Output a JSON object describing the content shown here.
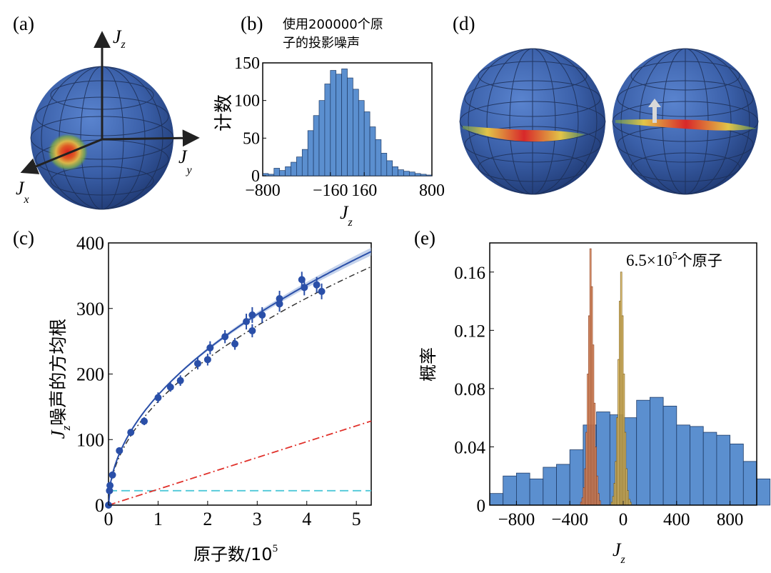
{
  "panels": {
    "a": {
      "label": "(a)",
      "axes": {
        "z": "J",
        "z_sub": "z",
        "y": "J",
        "y_sub": "y",
        "x": "J",
        "x_sub": "x"
      }
    },
    "b": {
      "label": "(b)",
      "note_line1": "使用200000个原",
      "note_line2": "子的投影噪声",
      "ylabel": "计数",
      "xlabel": "J",
      "xlabel_sub": "z"
    },
    "c": {
      "label": "(c)",
      "ylabel_main": "J",
      "ylabel_sub": "z",
      "ylabel_rest": "噪声的方均根",
      "xlabel": "原子数/10",
      "xlabel_sup": "5"
    },
    "d": {
      "label": "(d)"
    },
    "e": {
      "label": "(e)",
      "ylabel": "概率",
      "xlabel": "J",
      "xlabel_sub": "z",
      "annotation": "6.5×10",
      "annotation_sup": "5",
      "annotation_rest": "个原子"
    }
  },
  "colors": {
    "sphere": "#3a5fa8",
    "hist_blue": "#5b8fcf",
    "hist_orange": "#f0a070",
    "hist_yellow": "#f3d27a",
    "fit_blue": "#2a4fa8",
    "dashdot_black": "#333333",
    "dashdot_red": "#e0302a",
    "dashed_cyan": "#4fc8d8"
  },
  "chart_data": [
    {
      "id": "b",
      "type": "bar",
      "xlabel": "J_z",
      "ylabel": "计数",
      "xlim": [
        -800,
        800
      ],
      "ylim": [
        0,
        150
      ],
      "xticks": [
        "−800",
        "−160",
        "160",
        "800"
      ],
      "yticks": [
        "0",
        "50",
        "100",
        "150"
      ],
      "bin_width": 53.33,
      "values": [
        3,
        2,
        10,
        7,
        12,
        18,
        25,
        35,
        60,
        80,
        100,
        122,
        140,
        135,
        142,
        130,
        115,
        100,
        85,
        65,
        48,
        30,
        20,
        12,
        8,
        6,
        5,
        3,
        2,
        1
      ]
    },
    {
      "id": "c",
      "type": "scatter",
      "xlabel": "原子数/10^5",
      "ylabel": "J_z噪声的方均根",
      "xlim": [
        0,
        5.3
      ],
      "ylim": [
        0,
        400
      ],
      "xticks": [
        "0",
        "1",
        "2",
        "3",
        "4",
        "5"
      ],
      "yticks": [
        "0",
        "100",
        "200",
        "300",
        "400"
      ],
      "points": [
        {
          "x": 0.0,
          "y": 0,
          "err": 0
        },
        {
          "x": 0.02,
          "y": 22,
          "err": 3
        },
        {
          "x": 0.03,
          "y": 30,
          "err": 4
        },
        {
          "x": 0.08,
          "y": 46,
          "err": 4
        },
        {
          "x": 0.22,
          "y": 83,
          "err": 5
        },
        {
          "x": 0.45,
          "y": 111,
          "err": 5
        },
        {
          "x": 0.72,
          "y": 128,
          "err": 6
        },
        {
          "x": 1.0,
          "y": 164,
          "err": 8
        },
        {
          "x": 1.25,
          "y": 180,
          "err": 7
        },
        {
          "x": 1.45,
          "y": 190,
          "err": 8
        },
        {
          "x": 1.8,
          "y": 216,
          "err": 9
        },
        {
          "x": 2.0,
          "y": 222,
          "err": 9
        },
        {
          "x": 2.05,
          "y": 240,
          "err": 10
        },
        {
          "x": 2.35,
          "y": 257,
          "err": 10
        },
        {
          "x": 2.55,
          "y": 246,
          "err": 9
        },
        {
          "x": 2.78,
          "y": 280,
          "err": 12
        },
        {
          "x": 2.9,
          "y": 266,
          "err": 10
        },
        {
          "x": 2.9,
          "y": 290,
          "err": 12
        },
        {
          "x": 3.1,
          "y": 290,
          "err": 12
        },
        {
          "x": 3.45,
          "y": 315,
          "err": 12
        },
        {
          "x": 3.45,
          "y": 307,
          "err": 12
        },
        {
          "x": 3.9,
          "y": 344,
          "err": 12
        },
        {
          "x": 3.95,
          "y": 332,
          "err": 12
        },
        {
          "x": 4.2,
          "y": 336,
          "err": 12
        },
        {
          "x": 4.3,
          "y": 326,
          "err": 12
        }
      ],
      "fit_coeff": 168,
      "fit_exp": 0.5,
      "fit_offset": 0,
      "shot_coeff": 158,
      "red_slope": 24.2,
      "cyan_level": 22
    },
    {
      "id": "e",
      "type": "bar",
      "xlabel": "J_z",
      "ylabel": "概率",
      "xlim": [
        -1000,
        1000
      ],
      "ylim": [
        0,
        0.18
      ],
      "xticks": [
        "−800",
        "−400",
        "0",
        "400",
        "800"
      ],
      "yticks": [
        "0",
        "0.04",
        "0.08",
        "0.12",
        "0.16"
      ],
      "series": [
        {
          "kind": "wide",
          "bin_width": 100,
          "x_start": -1000,
          "values": [
            0.008,
            0.02,
            0.022,
            0.018,
            0.026,
            0.028,
            0.038,
            0.055,
            0.064,
            0.062,
            0.06,
            0.072,
            0.074,
            0.068,
            0.055,
            0.054,
            0.05,
            0.048,
            0.042,
            0.03,
            0.018
          ]
        },
        {
          "kind": "narrow",
          "bin_width": 10,
          "x_start": -320,
          "values": [
            0.002,
            0.005,
            0.012,
            0.025,
            0.05,
            0.09,
            0.13,
            0.176,
            0.15,
            0.11,
            0.07,
            0.04,
            0.02,
            0.008,
            0.003
          ]
        },
        {
          "kind": "narrow2",
          "bin_width": 10,
          "x_start": -90,
          "values": [
            0.002,
            0.006,
            0.015,
            0.03,
            0.06,
            0.1,
            0.14,
            0.16,
            0.13,
            0.09,
            0.05,
            0.025,
            0.01,
            0.004,
            0.002
          ]
        }
      ]
    }
  ]
}
